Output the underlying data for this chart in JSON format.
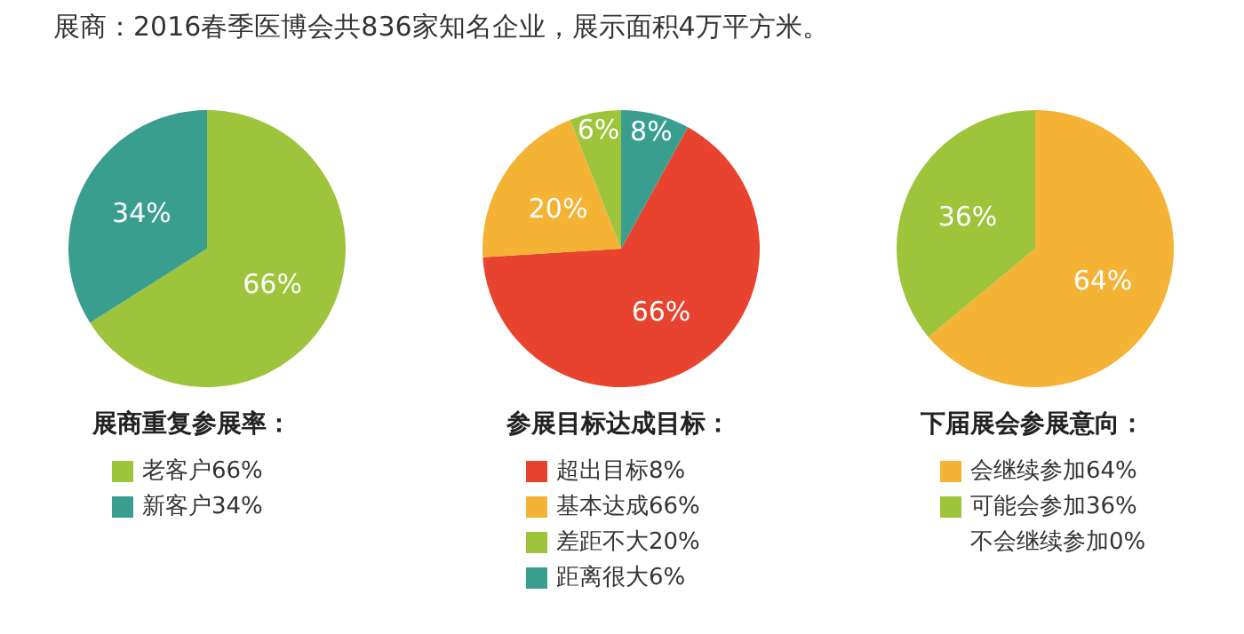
{
  "chart_data": [
    {
      "type": "pie",
      "title": "展商：2016春季医博会共836家知名企业，展示面积4万平方米。",
      "legend_title": "展商重复参展率：",
      "categories": [
        "老客户66%",
        "新客户34%"
      ],
      "values": [
        66,
        34
      ],
      "colors": [
        "#9dc43a",
        "#3a9e8f"
      ],
      "value_labels": [
        "66%",
        "34%"
      ],
      "legend": "bottom"
    },
    {
      "type": "pie",
      "legend_title": "参展目标达成目标：",
      "categories": [
        "超出目标8%",
        "基本达成66%",
        "差距不大20%",
        "距离很大6%"
      ],
      "values": [
        66,
        20,
        6,
        8
      ],
      "colors": [
        "#e8432e",
        "#f5b335",
        "#9dc43a",
        "#3a9e8f"
      ],
      "value_labels": [
        "66%",
        "20%",
        "6%",
        "8%"
      ],
      "legend": "bottom"
    },
    {
      "type": "pie",
      "legend_title": "下届展会参展意向：",
      "categories": [
        "会继续参加64%",
        "可能会参加36%",
        "不会继续参加0%"
      ],
      "values": [
        64,
        36,
        0
      ],
      "colors": [
        "#f5b335",
        "#9dc43a",
        "#ffffff"
      ],
      "value_labels": [
        "64%",
        "36%",
        null
      ],
      "legend": "bottom"
    }
  ]
}
